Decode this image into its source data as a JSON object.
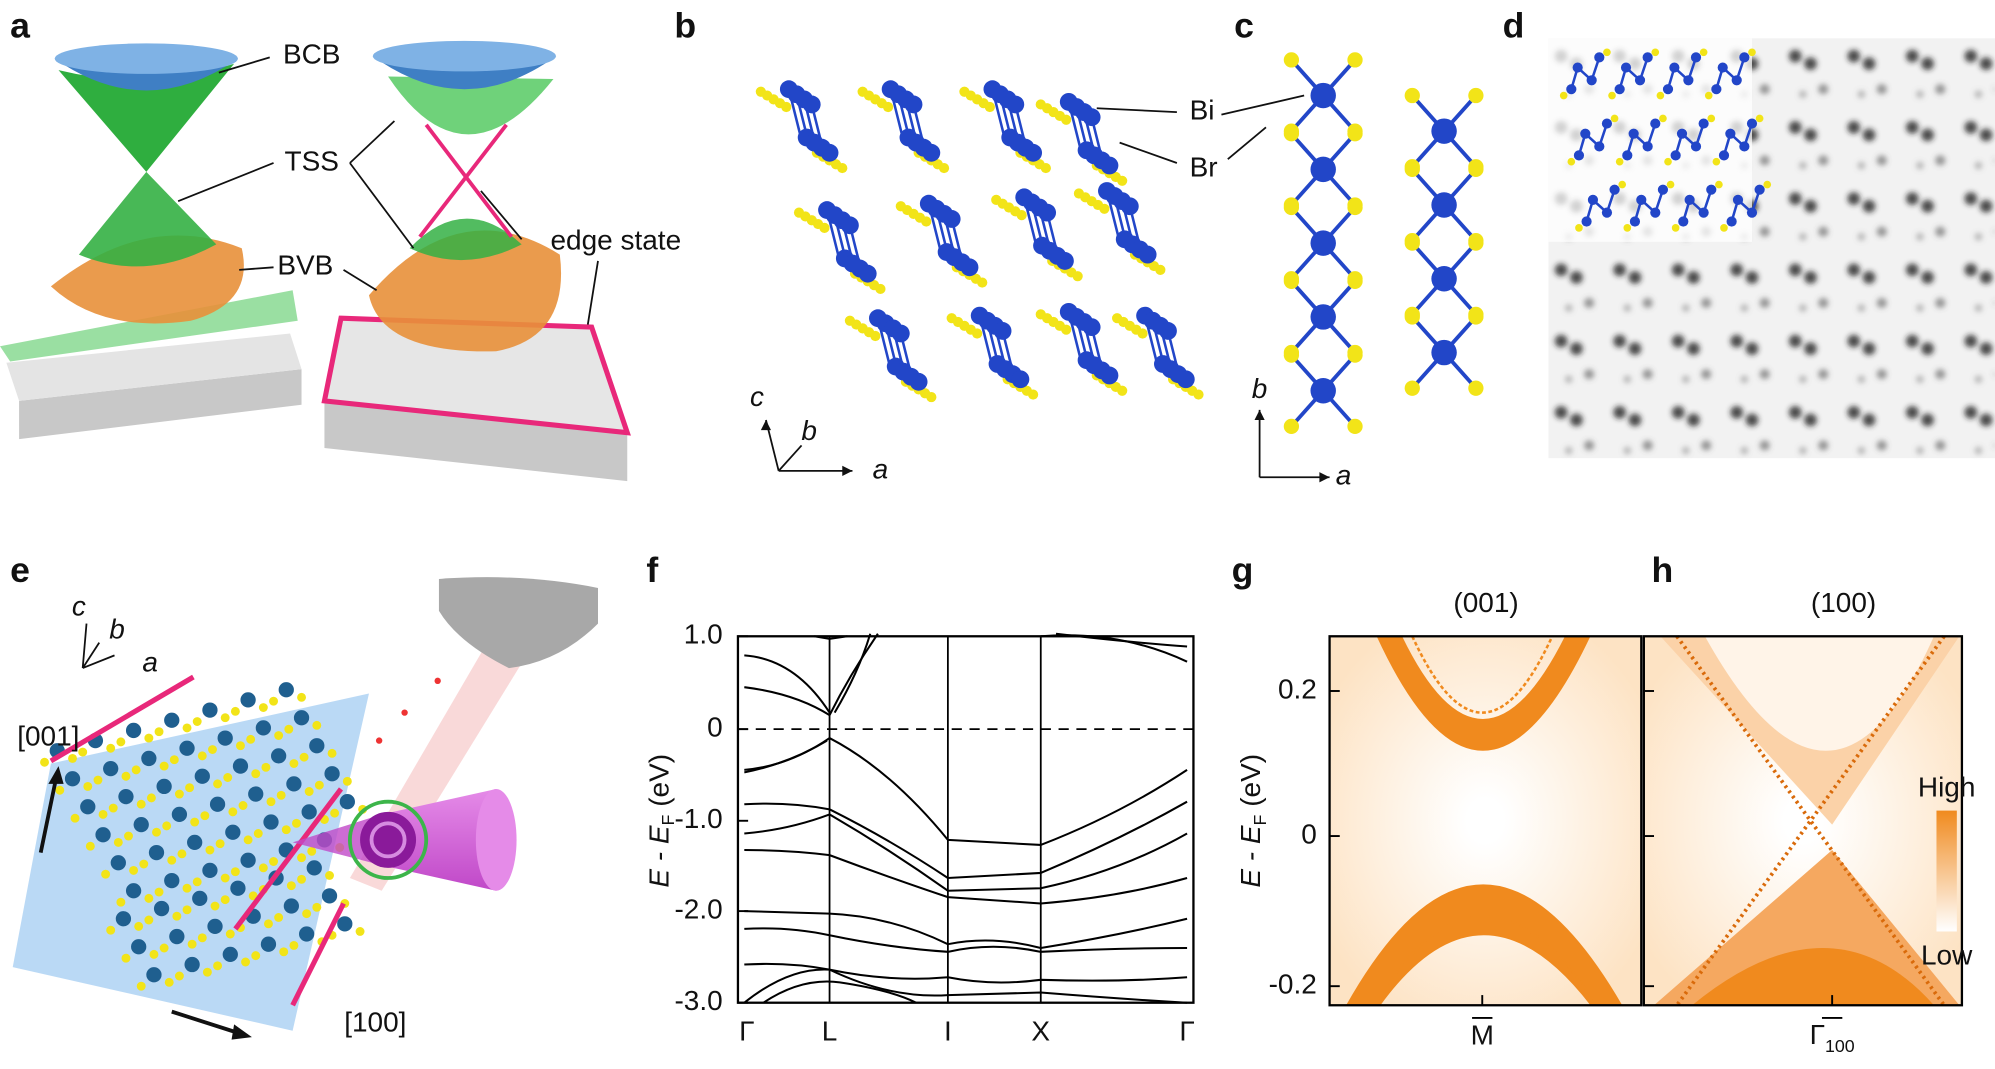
{
  "panels": {
    "a": {
      "letter": "a",
      "labels": [
        "BCB",
        "TSS",
        "BVB",
        "edge state"
      ]
    },
    "b": {
      "letter": "b",
      "labels": [
        "Bi",
        "Br"
      ],
      "axes": [
        "c",
        "b",
        "a"
      ]
    },
    "c": {
      "letter": "c",
      "axes": [
        "b",
        "a"
      ]
    },
    "d": {
      "letter": "d"
    },
    "e": {
      "letter": "e",
      "axes": [
        "c",
        "b",
        "a"
      ],
      "directions": [
        "[001]",
        "[100]"
      ]
    },
    "f": {
      "letter": "f",
      "ylabel": {
        "main": "E - E",
        "sub": "F",
        "unit": " (eV)"
      },
      "yticks": [
        "1.0",
        "0",
        "-1.0",
        "-2.0",
        "-3.0"
      ],
      "kpoints": [
        "Γ",
        "L",
        "I",
        "X",
        "Γ"
      ]
    },
    "g": {
      "letter": "g",
      "title": "(001)",
      "ylabel": {
        "main": "E - E",
        "sub": "F",
        "unit": " (eV)"
      },
      "yticks": [
        "0.2",
        "0",
        "-0.2"
      ],
      "xlabel": "M"
    },
    "h": {
      "letter": "h",
      "title": "(100)",
      "xlabel": "Γ",
      "xlabel_sub": "100",
      "colorbar": [
        "High",
        "Low"
      ]
    }
  }
}
